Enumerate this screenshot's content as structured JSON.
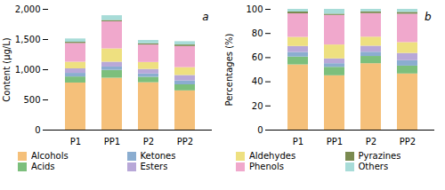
{
  "chart_data": [
    {
      "type": "bar",
      "stacked": true,
      "legend": "bottom",
      "annotations": [
        "a"
      ],
      "ylabel": "Content (μg/L)",
      "categories": [
        "P1",
        "PP1",
        "P2",
        "PP2"
      ],
      "ylim": [
        0,
        2000
      ],
      "yticks": [
        0,
        500,
        1000,
        1500,
        2000
      ],
      "series": [
        {
          "name": "Alcohols",
          "color": "#F5C07A",
          "values": [
            780,
            860,
            785,
            650
          ]
        },
        {
          "name": "Acids",
          "color": "#7CBF7C",
          "values": [
            100,
            130,
            90,
            100
          ]
        },
        {
          "name": "Ketones",
          "color": "#8BADD0",
          "values": [
            60,
            55,
            55,
            65
          ]
        },
        {
          "name": "Esters",
          "color": "#B8A8D8",
          "values": [
            75,
            80,
            75,
            90
          ]
        },
        {
          "name": "Aldehydes",
          "color": "#EEE080",
          "values": [
            110,
            220,
            115,
            130
          ]
        },
        {
          "name": "Phenols",
          "color": "#F0A8CC",
          "values": [
            310,
            450,
            290,
            350
          ]
        },
        {
          "name": "Pyrazines",
          "color": "#7A8A50",
          "values": [
            20,
            20,
            20,
            25
          ]
        },
        {
          "name": "Others",
          "color": "#A8DCd8",
          "values": [
            55,
            80,
            55,
            55
          ]
        }
      ]
    },
    {
      "type": "bar",
      "stacked": true,
      "legend": "bottom",
      "annotations": [
        "b"
      ],
      "ylabel": "Percentages (%)",
      "categories": [
        "P1",
        "PP1",
        "P2",
        "PP2"
      ],
      "ylim": [
        0,
        100
      ],
      "yticks": [
        0,
        20,
        40,
        60,
        80,
        100
      ],
      "series": [
        {
          "name": "Alcohols",
          "color": "#F5C07A",
          "values": [
            54.0,
            45.0,
            55.0,
            46.5
          ]
        },
        {
          "name": "Acids",
          "color": "#7CBF7C",
          "values": [
            6.5,
            7.0,
            6.0,
            6.5
          ]
        },
        {
          "name": "Ketones",
          "color": "#8BADD0",
          "values": [
            3.8,
            3.0,
            3.5,
            4.5
          ]
        },
        {
          "name": "Esters",
          "color": "#B8A8D8",
          "values": [
            5.0,
            4.0,
            5.0,
            6.0
          ]
        },
        {
          "name": "Aldehydes",
          "color": "#EEE080",
          "values": [
            7.5,
            11.5,
            7.5,
            9.0
          ]
        },
        {
          "name": "Phenols",
          "color": "#F0A8CC",
          "values": [
            19.5,
            24.5,
            19.5,
            23.5
          ]
        },
        {
          "name": "Pyrazines",
          "color": "#7A8A50",
          "values": [
            1.5,
            1.0,
            1.5,
            1.5
          ]
        },
        {
          "name": "Others",
          "color": "#A8DCd8",
          "values": [
            2.2,
            4.0,
            2.0,
            2.5
          ]
        }
      ]
    }
  ]
}
